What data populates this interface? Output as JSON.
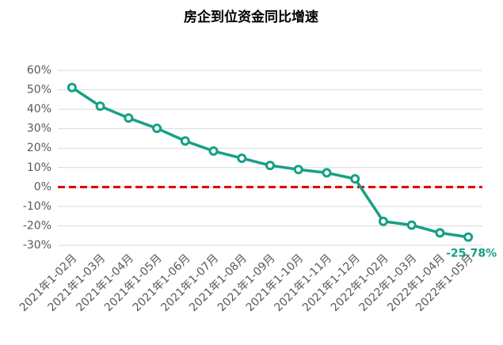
{
  "chart_data": {
    "type": "line",
    "title": "房企到位资金同比增速",
    "categories": [
      "2021年1-02月",
      "2021年1-03月",
      "2021年1-04月",
      "2021年1-05月",
      "2021年1-06月",
      "2021年1-07月",
      "2021年1-08月",
      "2021年1-09月",
      "2021年1-10月",
      "2021年1-11月",
      "2021年1-12月",
      "2022年1-02月",
      "2022年1-03月",
      "2022年1-04月",
      "2022年1-05月"
    ],
    "values": [
      51.2,
      41.6,
      35.5,
      30.2,
      23.7,
      18.5,
      14.8,
      11.1,
      9.0,
      7.3,
      4.2,
      -17.7,
      -19.6,
      -23.6,
      -25.78
    ],
    "value_labels": [
      null,
      null,
      null,
      null,
      null,
      null,
      null,
      null,
      null,
      null,
      null,
      null,
      null,
      null,
      "-25.78%"
    ],
    "color": "#16a085",
    "ylim": [
      -30,
      60
    ],
    "yticks": [
      {
        "value": -30,
        "label": "-30%"
      },
      {
        "value": -20,
        "label": "-20%"
      },
      {
        "value": -10,
        "label": "-10%"
      },
      {
        "value": 0,
        "label": "0%"
      },
      {
        "value": 10,
        "label": "10%"
      },
      {
        "value": 20,
        "label": "20%"
      },
      {
        "value": 30,
        "label": "30%"
      },
      {
        "value": 40,
        "label": "40%"
      },
      {
        "value": 50,
        "label": "50%"
      },
      {
        "value": 60,
        "label": "60%"
      }
    ],
    "grid": true,
    "reference_line": {
      "value": 0,
      "color": "#e00000"
    }
  }
}
